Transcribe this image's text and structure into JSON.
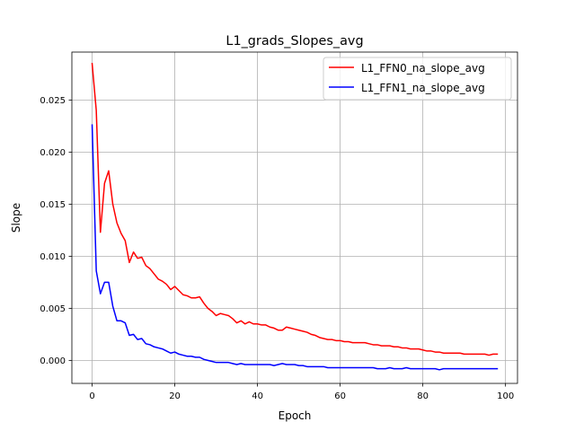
{
  "chart_data": {
    "type": "line",
    "title": "L1_grads_Slopes_avg",
    "xlabel": "Epoch",
    "ylabel": "Slope",
    "xlim": [
      -4.9,
      102.9
    ],
    "ylim": [
      -0.00221,
      0.0296
    ],
    "xticks": [
      0,
      20,
      40,
      60,
      80,
      100
    ],
    "xtick_labels": [
      "0",
      "20",
      "40",
      "60",
      "80",
      "100"
    ],
    "yticks": [
      0.0,
      0.005,
      0.01,
      0.015,
      0.02,
      0.025
    ],
    "ytick_labels": [
      "0.000",
      "0.005",
      "0.010",
      "0.015",
      "0.020",
      "0.025"
    ],
    "grid": true,
    "legend_position": "upper right",
    "series": [
      {
        "name": "L1_FFN0_na_slope_avg",
        "color": "#ff0000",
        "x": [
          0,
          1,
          2,
          3,
          4,
          5,
          6,
          7,
          8,
          9,
          10,
          11,
          12,
          13,
          14,
          15,
          16,
          17,
          18,
          19,
          20,
          21,
          22,
          23,
          24,
          25,
          26,
          27,
          28,
          29,
          30,
          31,
          32,
          33,
          34,
          35,
          36,
          37,
          38,
          39,
          40,
          41,
          42,
          43,
          44,
          45,
          46,
          47,
          48,
          49,
          50,
          51,
          52,
          53,
          54,
          55,
          56,
          57,
          58,
          59,
          60,
          61,
          62,
          63,
          64,
          65,
          66,
          67,
          68,
          69,
          70,
          71,
          72,
          73,
          74,
          75,
          76,
          77,
          78,
          79,
          80,
          81,
          82,
          83,
          84,
          85,
          86,
          87,
          88,
          89,
          90,
          91,
          92,
          93,
          94,
          95,
          96,
          97,
          98
        ],
        "values": [
          0.0285,
          0.024,
          0.0123,
          0.017,
          0.0182,
          0.015,
          0.0132,
          0.0122,
          0.0115,
          0.0094,
          0.0104,
          0.0098,
          0.0099,
          0.0091,
          0.0088,
          0.0083,
          0.0078,
          0.0076,
          0.0073,
          0.0068,
          0.0071,
          0.0067,
          0.0063,
          0.0062,
          0.006,
          0.006,
          0.0061,
          0.0055,
          0.005,
          0.0047,
          0.0043,
          0.0045,
          0.0044,
          0.0043,
          0.004,
          0.0036,
          0.0038,
          0.0035,
          0.0037,
          0.0035,
          0.0035,
          0.0034,
          0.0034,
          0.0032,
          0.0031,
          0.0029,
          0.0029,
          0.0032,
          0.0031,
          0.003,
          0.0029,
          0.0028,
          0.0027,
          0.0025,
          0.0024,
          0.0022,
          0.0021,
          0.002,
          0.002,
          0.0019,
          0.0019,
          0.0018,
          0.0018,
          0.0017,
          0.0017,
          0.0017,
          0.0017,
          0.0016,
          0.0015,
          0.0015,
          0.0014,
          0.0014,
          0.0014,
          0.0013,
          0.0013,
          0.0012,
          0.0012,
          0.0011,
          0.0011,
          0.0011,
          0.001,
          0.0009,
          0.0009,
          0.0008,
          0.0008,
          0.0007,
          0.0007,
          0.0007,
          0.0007,
          0.0007,
          0.0006,
          0.0006,
          0.0006,
          0.0006,
          0.0006,
          0.0006,
          0.0005,
          0.0006,
          0.0006
        ]
      },
      {
        "name": "L1_FFN1_na_slope_avg",
        "color": "#0000ff",
        "x": [
          0,
          1,
          2,
          3,
          4,
          5,
          6,
          7,
          8,
          9,
          10,
          11,
          12,
          13,
          14,
          15,
          16,
          17,
          18,
          19,
          20,
          21,
          22,
          23,
          24,
          25,
          26,
          27,
          28,
          29,
          30,
          31,
          32,
          33,
          34,
          35,
          36,
          37,
          38,
          39,
          40,
          41,
          42,
          43,
          44,
          45,
          46,
          47,
          48,
          49,
          50,
          51,
          52,
          53,
          54,
          55,
          56,
          57,
          58,
          59,
          60,
          61,
          62,
          63,
          64,
          65,
          66,
          67,
          68,
          69,
          70,
          71,
          72,
          73,
          74,
          75,
          76,
          77,
          78,
          79,
          80,
          81,
          82,
          83,
          84,
          85,
          86,
          87,
          88,
          89,
          90,
          91,
          92,
          93,
          94,
          95,
          96,
          97,
          98
        ],
        "values": [
          0.0226,
          0.0086,
          0.0064,
          0.0075,
          0.0075,
          0.0052,
          0.0038,
          0.0038,
          0.0036,
          0.0024,
          0.0025,
          0.002,
          0.0021,
          0.0016,
          0.0015,
          0.0013,
          0.0012,
          0.0011,
          0.0009,
          0.0007,
          0.0008,
          0.0006,
          0.0005,
          0.0004,
          0.0004,
          0.0003,
          0.0003,
          0.0001,
          0.0,
          -0.0001,
          -0.0002,
          -0.0002,
          -0.0002,
          -0.0002,
          -0.0003,
          -0.0004,
          -0.0003,
          -0.0004,
          -0.0004,
          -0.0004,
          -0.0004,
          -0.0004,
          -0.0004,
          -0.0004,
          -0.0005,
          -0.0004,
          -0.0003,
          -0.0004,
          -0.0004,
          -0.0004,
          -0.0005,
          -0.0005,
          -0.0006,
          -0.0006,
          -0.0006,
          -0.0006,
          -0.0006,
          -0.0007,
          -0.0007,
          -0.0007,
          -0.0007,
          -0.0007,
          -0.0007,
          -0.0007,
          -0.0007,
          -0.0007,
          -0.0007,
          -0.0007,
          -0.0007,
          -0.0008,
          -0.0008,
          -0.0008,
          -0.0007,
          -0.0008,
          -0.0008,
          -0.0008,
          -0.0007,
          -0.0008,
          -0.0008,
          -0.0008,
          -0.0008,
          -0.0008,
          -0.0008,
          -0.0008,
          -0.0009,
          -0.0008,
          -0.0008,
          -0.0008,
          -0.0008,
          -0.0008,
          -0.0008,
          -0.0008,
          -0.0008,
          -0.0008,
          -0.0008,
          -0.0008,
          -0.0008,
          -0.0008,
          -0.0008
        ]
      }
    ]
  }
}
